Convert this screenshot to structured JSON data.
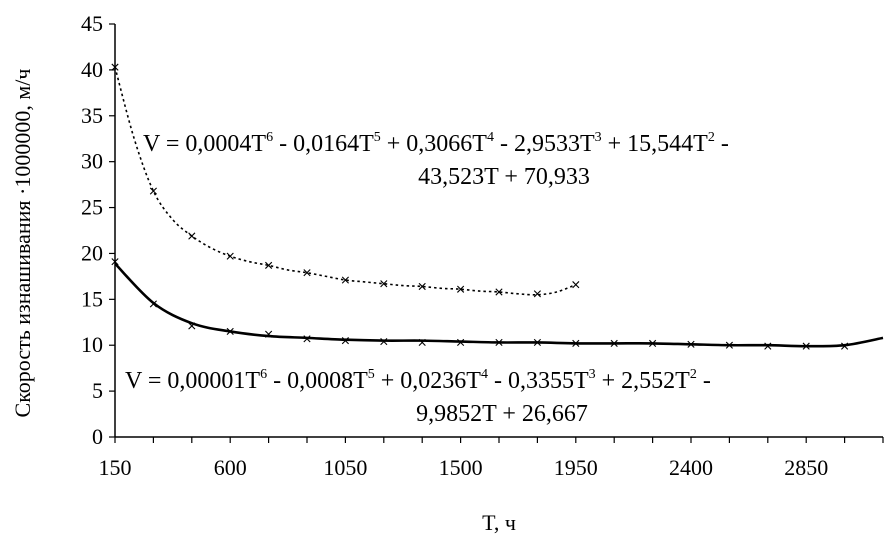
{
  "chart_data": {
    "type": "line",
    "xlabel": "T, ч",
    "ylabel": "Скорость изнашивания ·1000000, м/ч",
    "xlim": [
      150,
      3150
    ],
    "ylim": [
      0,
      45
    ],
    "x_ticks": [
      "150",
      "600",
      "1050",
      "1500",
      "1950",
      "2400",
      "2850"
    ],
    "y_ticks": [
      "0",
      "5",
      "10",
      "15",
      "20",
      "25",
      "30",
      "35",
      "40",
      "45"
    ],
    "grid": false,
    "series": [
      {
        "style": "dotted",
        "marker": "x",
        "x": [
          150,
          300,
          450,
          600,
          750,
          900,
          1050,
          1200,
          1350,
          1500,
          1650,
          1800,
          1950
        ],
        "y": [
          40.3,
          26.8,
          21.9,
          19.7,
          18.7,
          17.9,
          17.1,
          16.7,
          16.4,
          16.1,
          15.8,
          15.6,
          16.6
        ],
        "trend_x": [
          150,
          225,
          300,
          375,
          450,
          525,
          600,
          675,
          750,
          825,
          900,
          975,
          1050,
          1125,
          1200,
          1275,
          1350,
          1425,
          1500,
          1575,
          1650,
          1725,
          1800,
          1875,
          1950
        ],
        "trend_y": [
          40.3,
          32.5,
          26.8,
          23.7,
          21.9,
          20.6,
          19.7,
          19.1,
          18.7,
          18.2,
          17.9,
          17.5,
          17.1,
          16.9,
          16.7,
          16.5,
          16.4,
          16.2,
          16.1,
          15.9,
          15.8,
          15.6,
          15.5,
          15.8,
          16.6
        ],
        "equation": {
          "line1": [
            {
              "t": "V = 0,0004T"
            },
            {
              "t": "6",
              "sup": true
            },
            {
              "t": " - 0,0164T"
            },
            {
              "t": "5",
              "sup": true
            },
            {
              "t": " + 0,3066T"
            },
            {
              "t": "4",
              "sup": true
            },
            {
              "t": " - 2,9533T"
            },
            {
              "t": "3",
              "sup": true
            },
            {
              "t": " + 15,544T"
            },
            {
              "t": "2",
              "sup": true
            },
            {
              "t": " -"
            }
          ],
          "line2": "43,523T + 70,933"
        }
      },
      {
        "style": "solid",
        "marker": "x",
        "x": [
          150,
          300,
          450,
          600,
          750,
          900,
          1050,
          1200,
          1350,
          1500,
          1650,
          1800,
          1950,
          2100,
          2250,
          2400,
          2550,
          2700,
          2850,
          3000
        ],
        "y": [
          19.1,
          14.5,
          12.1,
          11.5,
          11.2,
          10.7,
          10.5,
          10.4,
          10.3,
          10.3,
          10.3,
          10.3,
          10.2,
          10.2,
          10.2,
          10.1,
          10.0,
          9.9,
          9.9,
          9.9
        ],
        "trend_x": [
          150,
          300,
          450,
          600,
          750,
          900,
          1050,
          1200,
          1350,
          1500,
          1650,
          1800,
          1950,
          2100,
          2250,
          2400,
          2550,
          2700,
          2850,
          3000,
          3150
        ],
        "trend_y": [
          18.9,
          14.6,
          12.4,
          11.5,
          11.0,
          10.8,
          10.6,
          10.5,
          10.5,
          10.4,
          10.3,
          10.3,
          10.2,
          10.2,
          10.2,
          10.1,
          10.0,
          10.0,
          9.9,
          10.0,
          10.8
        ],
        "equation": {
          "line1": [
            {
              "t": "V = 0,00001T"
            },
            {
              "t": "6",
              "sup": true
            },
            {
              "t": " - 0,0008T"
            },
            {
              "t": "5",
              "sup": true
            },
            {
              "t": " + 0,0236T"
            },
            {
              "t": "4",
              "sup": true
            },
            {
              "t": " - 0,3355T"
            },
            {
              "t": "3",
              "sup": true
            },
            {
              "t": " + 2,552T"
            },
            {
              "t": "2",
              "sup": true
            },
            {
              "t": " -"
            }
          ],
          "line2": "9,9852T + 26,667"
        }
      }
    ]
  }
}
